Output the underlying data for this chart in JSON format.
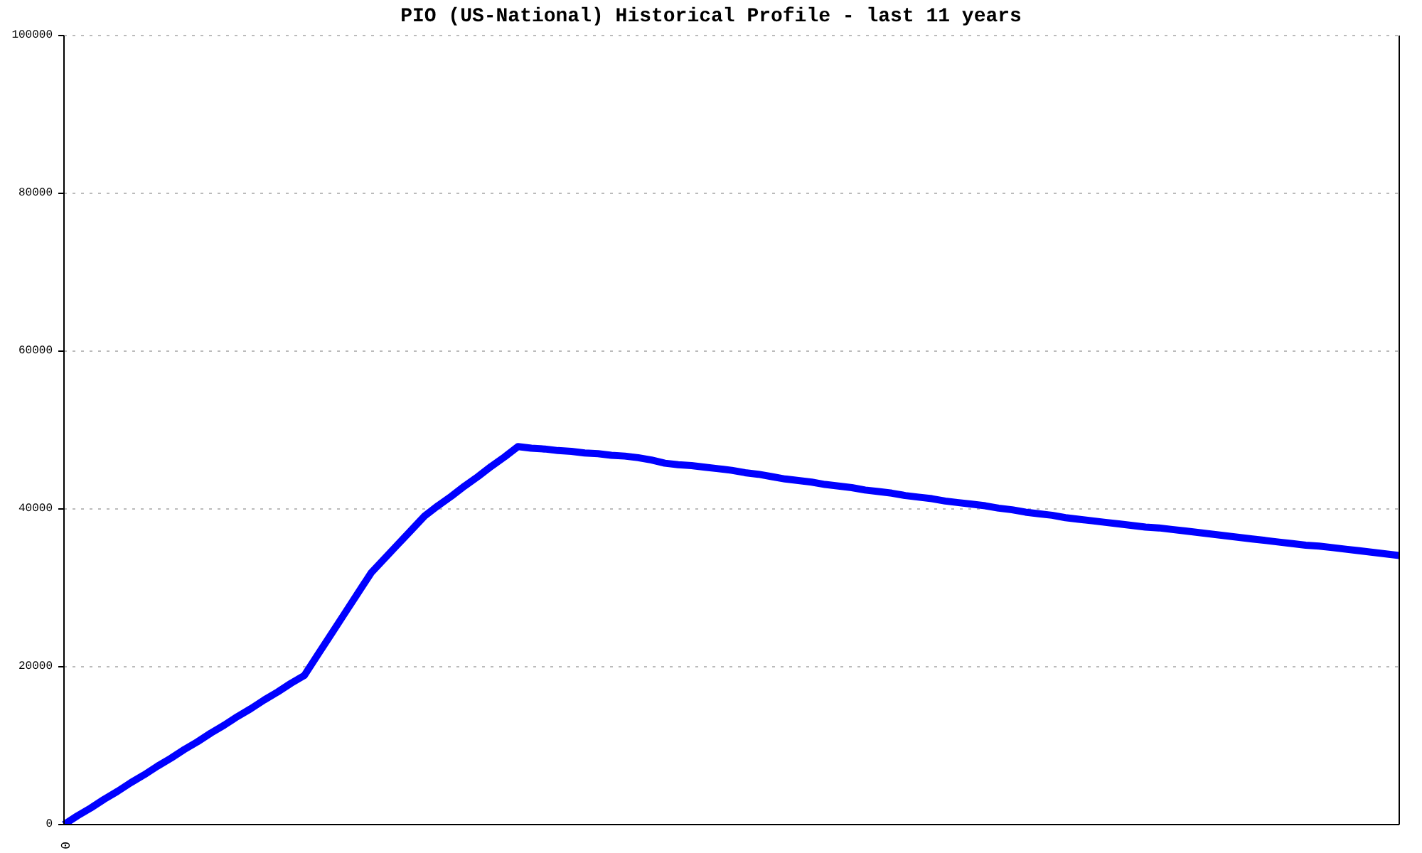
{
  "chart_data": {
    "type": "line",
    "title": "PIO (US-National) Historical Profile - last 11 years",
    "categories": [
      "0",
      null,
      null,
      null,
      null,
      null,
      null,
      null,
      null,
      null,
      null,
      null,
      null,
      null,
      null,
      null,
      null,
      null,
      null,
      null,
      null,
      null,
      null,
      null,
      null,
      null,
      null,
      null,
      null,
      null,
      null,
      null,
      null,
      null,
      null,
      null,
      null,
      null,
      null,
      null,
      null,
      null,
      null,
      null,
      null,
      null,
      null,
      null,
      null,
      null,
      null,
      null,
      null,
      null,
      null,
      null,
      null,
      null,
      null,
      null,
      null,
      null,
      null,
      null,
      null,
      null,
      null,
      null,
      null,
      null,
      null,
      null,
      null,
      null,
      null,
      null,
      null,
      null,
      null,
      null,
      null,
      null,
      null,
      null,
      null,
      null,
      null,
      null,
      null,
      null,
      null,
      null,
      null,
      null,
      null,
      null,
      null,
      null,
      null,
      null,
      null
    ],
    "series": [
      {
        "color": "#0000ff",
        "values": [
          0,
          1100,
          2100,
          3200,
          4200,
          5300,
          6300,
          7400,
          8400,
          9500,
          10500,
          11600,
          12600,
          13700,
          14700,
          15800,
          16800,
          17900,
          18900,
          21500,
          24100,
          26700,
          29300,
          31900,
          33700,
          35500,
          37300,
          39100,
          40400,
          41600,
          42900,
          44100,
          45400,
          46600,
          47900,
          47700,
          47600,
          47400,
          47300,
          47100,
          47000,
          46800,
          46700,
          46500,
          46200,
          45800,
          45600,
          45500,
          45300,
          45100,
          44900,
          44600,
          44400,
          44100,
          43800,
          43600,
          43400,
          43100,
          42900,
          42700,
          42400,
          42200,
          42000,
          41700,
          41500,
          41300,
          41000,
          40800,
          40600,
          40400,
          40100,
          39900,
          39600,
          39400,
          39200,
          38900,
          38700,
          38500,
          38300,
          38100,
          37900,
          37700,
          37600,
          37400,
          37200,
          37000,
          36800,
          36600,
          36400,
          36200,
          36000,
          35800,
          35600,
          35400,
          35300,
          35100,
          34900,
          34700,
          34500,
          34300,
          34100
        ]
      }
    ],
    "ylim": [
      0,
      100000
    ],
    "yticks": [
      0,
      20000,
      40000,
      60000,
      80000,
      100000
    ],
    "grid": "y",
    "legend": false,
    "marker": "none",
    "line_style": "solid"
  }
}
